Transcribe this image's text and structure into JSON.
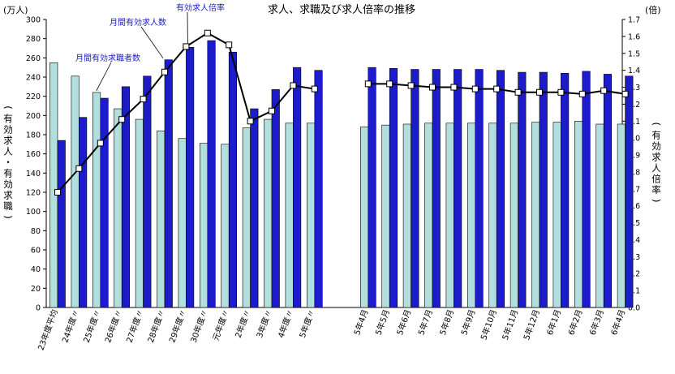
{
  "chart_data": {
    "type": "bar",
    "title": "求人、求職及び求人倍率の推移",
    "left_unit": "(万人)",
    "right_unit": "(倍)",
    "left_axis_label": "(有効求人・有効求職)",
    "right_axis_label": "(有効求人倍率)",
    "left_ylim": [
      0,
      300
    ],
    "left_ticks": [
      "0",
      "20",
      "40",
      "60",
      "80",
      "100",
      "120",
      "140",
      "160",
      "180",
      "200",
      "220",
      "240",
      "260",
      "280",
      "300"
    ],
    "right_ylim": [
      0,
      1.7
    ],
    "right_ticks": [
      "0.0",
      "0.1",
      "0.2",
      "0.3",
      "0.4",
      "0.5",
      "0.6",
      "0.7",
      "0.8",
      "0.9",
      "1.0",
      "1.1",
      "1.2",
      "1.3",
      "1.4",
      "1.5",
      "1.6",
      "1.7"
    ],
    "categories": [
      "23年度平均",
      "24年度〃",
      "25年度〃",
      "26年度〃",
      "27年度〃",
      "28年度〃",
      "29年度〃",
      "30年度〃",
      "元年度〃",
      "2年度〃",
      "3年度〃",
      "4年度〃",
      "5年度〃",
      "5年4月",
      "5年5月",
      "5年6月",
      "5年7月",
      "5年8月",
      "5年9月",
      "5年10月",
      "5年11月",
      "5年12月",
      "6年1月",
      "6年2月",
      "6年3月",
      "6年4月"
    ],
    "series": [
      {
        "name": "月間有効求職者数",
        "kind": "bar",
        "color": "#b3dede",
        "values": [
          255,
          241,
          224,
          207,
          196,
          184,
          176,
          171,
          170,
          187,
          196,
          192,
          192,
          188,
          190,
          191,
          192,
          192,
          192,
          192,
          192,
          193,
          193,
          194,
          191,
          191
        ]
      },
      {
        "name": "月間有効求人数",
        "kind": "bar",
        "color": "#1c1ccc",
        "values": [
          174,
          198,
          218,
          230,
          241,
          258,
          271,
          278,
          266,
          207,
          227,
          250,
          247,
          250,
          249,
          248,
          248,
          248,
          248,
          247,
          245,
          245,
          244,
          246,
          243,
          241
        ]
      },
      {
        "name": "有効求人倍率",
        "kind": "line",
        "axis": "right",
        "color": "#000000",
        "values": [
          0.68,
          0.82,
          0.97,
          1.11,
          1.23,
          1.39,
          1.54,
          1.62,
          1.55,
          1.1,
          1.16,
          1.31,
          1.29,
          1.32,
          1.32,
          1.31,
          1.3,
          1.3,
          1.29,
          1.29,
          1.27,
          1.27,
          1.27,
          1.26,
          1.28,
          1.26
        ]
      }
    ],
    "grid": false,
    "legend": "annotations"
  }
}
